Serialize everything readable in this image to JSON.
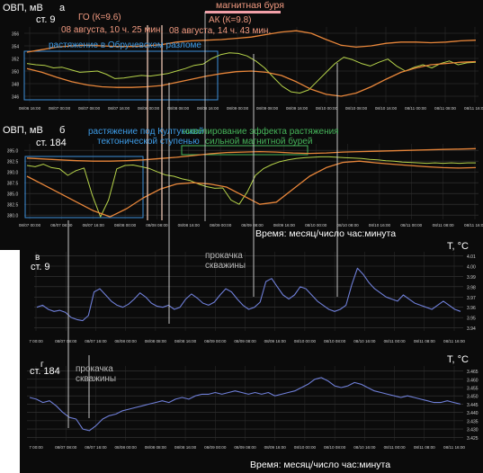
{
  "annotations": {
    "magnetic_storm": "магнитная буря",
    "go_event": "ГО (К=9.6)",
    "go_time": "08 августа, 10 ч. 25 мин.",
    "ak_event": "АК (К=9.8)",
    "ak_time": "08 августа, 14 ч. 43 мин.",
    "obruchev_stretch": "растяжение  в Обручевском разломе",
    "kultuk_stretch_1": "растяжение под Култукской",
    "kultuk_stretch_2": "тектонической ступенью",
    "leveling_1": "нивелирование эффекта растяжения",
    "leveling_2": "сильной магнитной бурей",
    "pumping_1": "прокачка",
    "pumping_2": "скважины",
    "pumping_3": "прокачка",
    "pumping_4": "скважины",
    "time_axis_1": "Время: месяц/число час:минута",
    "time_axis_2": "Время: месяц/число час:минута"
  },
  "colors": {
    "background": "#0b0b0b",
    "orp_trace": "#b6d34a",
    "envelope": "#e8863a",
    "temperature": "#6f7fd8",
    "storm_bar": "#f2a0a8",
    "box_blue": "#3d8fd9",
    "box_green": "#46b45a",
    "event_line": "#e9c2b0"
  },
  "chart_data": [
    {
      "panel": "а",
      "type": "line",
      "ylabel": "ОВП, мВ",
      "station": "ст. 9",
      "yticks": [
        "356",
        "354",
        "352",
        "350",
        "348",
        "346"
      ],
      "xticks": [
        "08/06 16:00",
        "08/07 00:00",
        "08/07 08:00",
        "08/07 16:00",
        "08/08 00:00",
        "08/08 08:00",
        "08/08 16:00",
        "08/09 00:00",
        "08/09 08:00",
        "08/09 16:00",
        "08/10 00:00",
        "08/10 08:00",
        "08/10 16:00",
        "08/11 00:00",
        "08/11 08:00",
        "08/11 16:00"
      ],
      "ylim": [
        345,
        357
      ],
      "series": [
        {
          "values": [
            351.2,
            351.0,
            350.9,
            350.5,
            350.6,
            350.2,
            349.8,
            349.9,
            350.0,
            349.5,
            348.8,
            348.9,
            349.1,
            349.3,
            349.2,
            349.4,
            349.6,
            350.0,
            350.4,
            350.9,
            351.1,
            352.0,
            352.6,
            352.9,
            352.8,
            352.4,
            351.6,
            350.5,
            349.0,
            347.6,
            346.7,
            346.5,
            347.0,
            348.4,
            349.8,
            351.2,
            352.2,
            351.8,
            351.2,
            350.8,
            351.4,
            351.9,
            350.8,
            350.0,
            350.6,
            351.0,
            350.5,
            351.2,
            351.6,
            351.0,
            351.3,
            351.4
          ]
        },
        {
          "values": [
            353.0,
            353.4,
            353.8,
            354.0,
            354.1,
            354.0,
            353.9,
            353.9,
            354.0,
            354.2,
            354.6,
            354.8,
            354.9,
            355.0,
            355.2,
            355.4,
            355.8,
            356.2,
            356.4,
            356.0,
            355.0,
            354.1,
            353.8,
            354.0,
            354.4,
            354.6,
            354.6,
            354.5,
            354.6,
            354.8,
            354.9
          ]
        },
        {
          "values": [
            350.4,
            349.8,
            349.0,
            348.3,
            347.8,
            347.5,
            347.4,
            347.4,
            347.5,
            347.7,
            348.2,
            348.7,
            349.2,
            349.6,
            349.9,
            350.0,
            349.8,
            349.3,
            348.3,
            347.1,
            346.3,
            346.0,
            346.5,
            347.5,
            348.7,
            349.8,
            350.5,
            351.0,
            351.2,
            351.4,
            351.5
          ]
        }
      ]
    },
    {
      "panel": "б",
      "type": "line",
      "ylabel": "ОВП, мВ",
      "station": "ст. 184",
      "yticks": [
        "395.0",
        "392.5",
        "390.0",
        "387.5",
        "385.0",
        "382.5",
        "380.0"
      ],
      "xticks": [
        "08/07 00:00",
        "08/07 08:00",
        "08/07 16:00",
        "08/08 00:00",
        "08/08 08:00",
        "08/08 16:00",
        "08/09 00:00",
        "08/09 08:00",
        "08/09 16:00",
        "08/10 00:00",
        "08/10 08:00",
        "08/10 16:00",
        "08/11 00:00",
        "08/11 08:00",
        "08/11 16:00"
      ],
      "ylim": [
        379,
        396.5
      ],
      "series": [
        {
          "values": [
            391.5,
            391.2,
            391.8,
            391.0,
            390.7,
            389.2,
            390.3,
            390.9,
            384.6,
            379.6,
            383.5,
            390.7,
            391.5,
            391.6,
            391.2,
            390.8,
            390.0,
            389.3,
            389.0,
            388.4,
            388.0,
            387.2,
            386.6,
            386.2,
            386.3,
            383.5,
            382.5,
            385.4,
            389.2,
            390.8,
            391.7,
            392.4,
            392.8,
            393.1,
            393.3,
            393.4,
            393.5,
            393.5,
            393.4,
            393.3,
            393.2,
            393.1,
            392.9,
            392.8,
            392.6,
            392.5,
            392.3,
            392.2,
            392.1,
            392.0,
            392.1,
            392.0,
            392.1,
            392.0,
            392.1,
            392.1
          ]
        },
        {
          "values": [
            393.2,
            393.0,
            392.8,
            392.6,
            392.5,
            392.5,
            392.6,
            392.8,
            393.1,
            393.4,
            393.8,
            394.2,
            394.5,
            394.6,
            394.7,
            394.6,
            394.4,
            394.3,
            394.4,
            394.6,
            394.7,
            394.8,
            394.9,
            395.0,
            395.1,
            395.2,
            395.3,
            395.4
          ]
        },
        {
          "values": [
            389.0,
            387.0,
            385.0,
            383.0,
            381.0,
            379.6,
            381.5,
            384.0,
            386.0,
            387.2,
            387.5,
            387.2,
            386.5,
            384.5,
            382.5,
            383.0,
            386.0,
            389.0,
            391.0,
            392.2,
            392.5,
            392.1,
            391.8,
            391.5,
            391.2,
            391.0,
            390.9,
            391.0
          ]
        }
      ]
    },
    {
      "panel": "в",
      "type": "line",
      "ylabel": "T, °C",
      "station": "ст. 9",
      "yticks": [
        "4.01",
        "4.00",
        "3.99",
        "3.98",
        "3.97",
        "3.96",
        "3.95",
        "3.94"
      ],
      "xticks": [
        "7 00:00",
        "08/07 08:00",
        "08/07 16:00",
        "08/08 00:00",
        "08/08 08:00",
        "08/08 16:00",
        "08/09 00:00",
        "08/09 08:00",
        "08/09 16:00",
        "08/10 00:00",
        "08/10 08:00",
        "08/10 16:00",
        "08/11 00:00",
        "08/11 08:00",
        "08/11 16:00"
      ],
      "ylim": [
        3.937,
        4.014
      ],
      "series": [
        {
          "values": [
            3.96,
            3.962,
            3.958,
            3.956,
            3.957,
            3.955,
            3.95,
            3.948,
            3.947,
            3.952,
            3.975,
            3.978,
            3.972,
            3.966,
            3.962,
            3.96,
            3.963,
            3.968,
            3.974,
            3.97,
            3.964,
            3.961,
            3.96,
            3.962,
            3.958,
            3.96,
            3.968,
            3.973,
            3.969,
            3.964,
            3.962,
            3.965,
            3.972,
            3.978,
            3.975,
            3.968,
            3.962,
            3.958,
            3.96,
            3.965,
            3.985,
            3.988,
            3.98,
            3.972,
            3.968,
            3.972,
            3.98,
            3.978,
            3.972,
            3.966,
            3.962,
            3.958,
            3.956,
            3.958,
            3.962,
            3.982,
            3.998,
            3.992,
            3.984,
            3.978,
            3.974,
            3.97,
            3.968,
            3.966,
            3.972,
            3.968,
            3.964,
            3.962,
            3.96,
            3.958,
            3.962,
            3.966,
            3.962,
            3.958,
            3.956
          ]
        }
      ]
    },
    {
      "panel": "г",
      "type": "line",
      "ylabel": "T, °C",
      "station": "ст. 184",
      "yticks": [
        "3.465",
        "3.460",
        "3.455",
        "3.450",
        "3.445",
        "3.440",
        "3.435",
        "3.430",
        "3.425"
      ],
      "xticks": [
        "7 00:00",
        "08/07 08:00",
        "08/07 16:00",
        "08/08 00:00",
        "08/08 08:00",
        "08/08 16:00",
        "08/09 00:00",
        "08/09 08:00",
        "08/09 16:00",
        "08/10 00:00",
        "08/10 08:00",
        "08/10 16:00",
        "08/11 00:00",
        "08/11 08:00",
        "08/11 16:00"
      ],
      "ylim": [
        3.423,
        3.468
      ],
      "series": [
        {
          "values": [
            3.449,
            3.448,
            3.446,
            3.447,
            3.444,
            3.44,
            3.437,
            3.436,
            3.43,
            3.429,
            3.432,
            3.436,
            3.438,
            3.439,
            3.441,
            3.442,
            3.443,
            3.444,
            3.445,
            3.446,
            3.447,
            3.446,
            3.448,
            3.449,
            3.448,
            3.45,
            3.451,
            3.451,
            3.452,
            3.451,
            3.452,
            3.453,
            3.452,
            3.451,
            3.452,
            3.451,
            3.452,
            3.45,
            3.451,
            3.452,
            3.453,
            3.455,
            3.457,
            3.46,
            3.461,
            3.459,
            3.456,
            3.455,
            3.456,
            3.458,
            3.457,
            3.455,
            3.453,
            3.452,
            3.451,
            3.45,
            3.449,
            3.45,
            3.449,
            3.448,
            3.447,
            3.446,
            3.446,
            3.447,
            3.446,
            3.445
          ]
        }
      ]
    }
  ]
}
